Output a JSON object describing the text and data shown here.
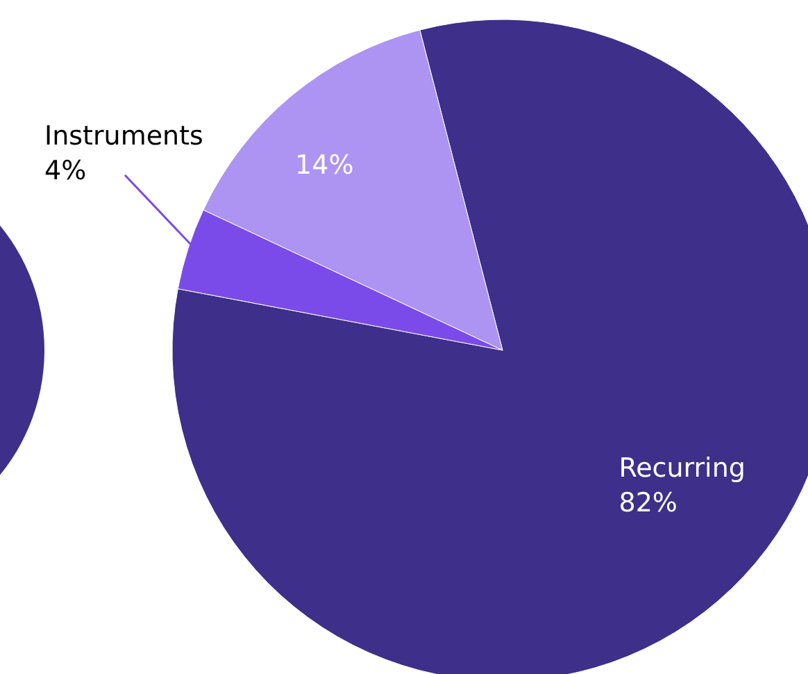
{
  "chart_data": {
    "type": "pie",
    "categories": [
      "Recurring",
      "Instruments",
      null
    ],
    "values": [
      82,
      4,
      14
    ],
    "colors": [
      "#3d2f8a",
      "#7b4bea",
      "#ad93f2"
    ],
    "value_labels": [
      "82%",
      "4%",
      "14%"
    ],
    "legend": false
  }
}
